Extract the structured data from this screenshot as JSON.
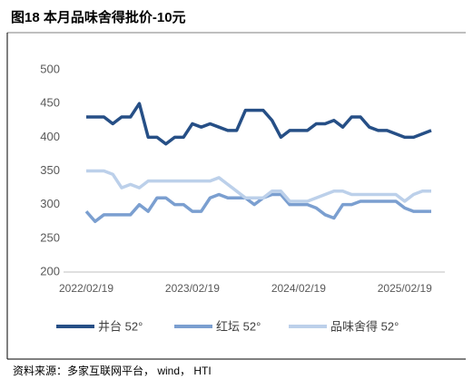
{
  "chart_data": {
    "type": "line",
    "title": "图18 本月品味舍得批价-10元",
    "source": "资料来源：多家互联网平台， wind， HTI",
    "categories": [
      "2022/02/19",
      null,
      null,
      null,
      null,
      null,
      null,
      null,
      null,
      null,
      null,
      null,
      "2023/02/19",
      null,
      null,
      null,
      null,
      null,
      null,
      null,
      null,
      null,
      null,
      null,
      "2024/02/19",
      null,
      null,
      null,
      null,
      null,
      null,
      null,
      null,
      null,
      null,
      null,
      "2025/02/19",
      null,
      null,
      null
    ],
    "series": [
      {
        "name": "井台 52°",
        "color": "#264f86",
        "values": [
          430,
          430,
          430,
          420,
          430,
          430,
          450,
          400,
          400,
          390,
          400,
          400,
          420,
          415,
          420,
          415,
          410,
          410,
          440,
          440,
          440,
          425,
          400,
          410,
          410,
          410,
          420,
          420,
          425,
          415,
          430,
          430,
          415,
          410,
          410,
          405,
          400,
          400,
          405,
          410
        ]
      },
      {
        "name": "红坛 52°",
        "color": "#7b9fd0",
        "values": [
          290,
          275,
          285,
          285,
          285,
          285,
          300,
          290,
          310,
          310,
          300,
          300,
          290,
          290,
          310,
          315,
          310,
          310,
          310,
          300,
          310,
          315,
          315,
          300,
          300,
          300,
          295,
          285,
          280,
          300,
          300,
          305,
          305,
          305,
          305,
          305,
          295,
          290,
          290,
          290
        ]
      },
      {
        "name": "品味舍得 52°",
        "color": "#bcd0ea",
        "values": [
          350,
          350,
          350,
          345,
          325,
          330,
          325,
          335,
          335,
          335,
          335,
          335,
          335,
          335,
          335,
          340,
          330,
          320,
          310,
          310,
          310,
          320,
          320,
          305,
          305,
          305,
          310,
          315,
          320,
          320,
          315,
          315,
          315,
          315,
          315,
          315,
          305,
          315,
          320,
          320
        ]
      }
    ],
    "ylim": [
      200,
      500
    ],
    "yticks": [
      200,
      250,
      300,
      350,
      400,
      450,
      500
    ],
    "grid": false
  }
}
